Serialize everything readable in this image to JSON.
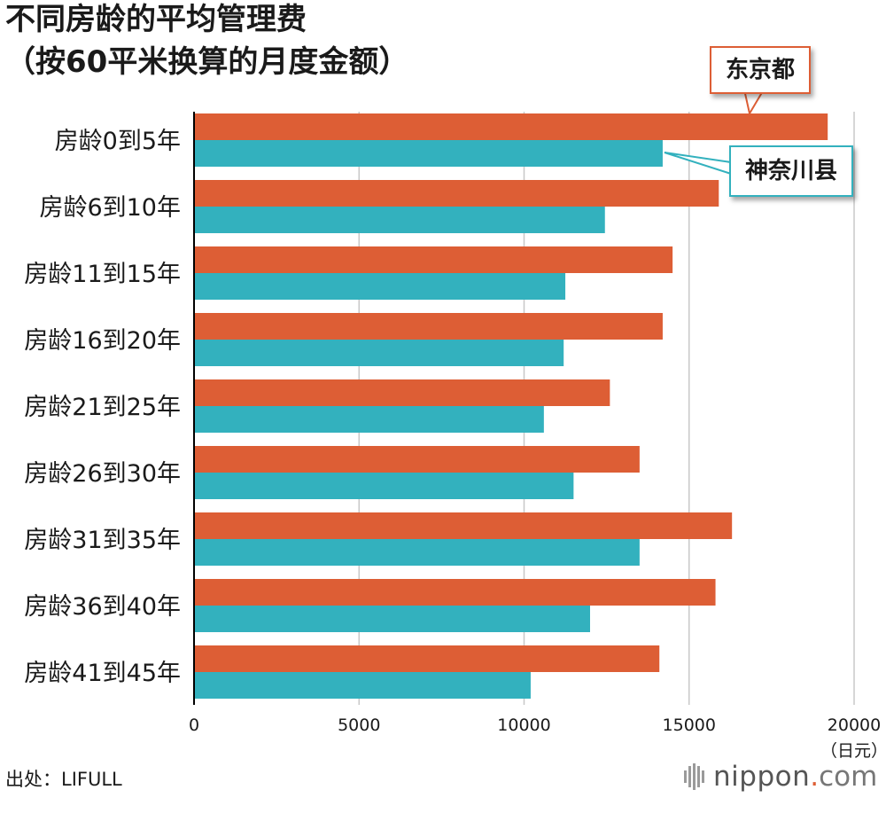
{
  "title_line1": "不同房龄的平均管理费",
  "title_line2": "（按60平米换算的月度金额）",
  "source": "出处：LIFULL",
  "brand": {
    "name": "nippon",
    "dot": ".",
    "tld": "com"
  },
  "chart_data": {
    "type": "bar",
    "orientation": "horizontal",
    "categories": [
      "房龄0到5年",
      "房龄6到10年",
      "房龄11到15年",
      "房龄16到20年",
      "房龄21到25年",
      "房龄26到30年",
      "房龄31到35年",
      "房龄36到40年",
      "房龄41到45年"
    ],
    "series": [
      {
        "name": "东京都",
        "color": "#dd5e35",
        "values": [
          19200,
          15900,
          14500,
          14200,
          12600,
          13500,
          16300,
          15800,
          14100
        ]
      },
      {
        "name": "神奈川县",
        "color": "#33b1be",
        "values": [
          14200,
          12450,
          11250,
          11200,
          10600,
          11500,
          13500,
          12000,
          10200
        ]
      }
    ],
    "x_ticks": [
      0,
      5000,
      10000,
      15000,
      20000
    ],
    "x_tick_labels": [
      "0",
      "5000",
      "10000",
      "15000",
      "20000"
    ],
    "xlim": [
      0,
      20000
    ],
    "unit": "（日元）",
    "grid": true
  }
}
